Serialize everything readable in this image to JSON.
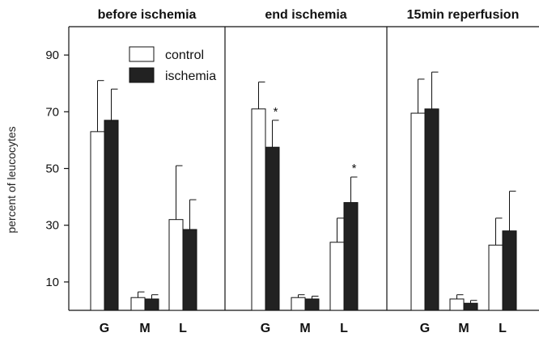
{
  "chart_data": {
    "type": "bar",
    "ylabel": "percent of leucocytes",
    "ylim": [
      0,
      100
    ],
    "yticks": [
      10,
      30,
      50,
      70,
      90
    ],
    "categories": [
      "G",
      "M",
      "L"
    ],
    "legend": {
      "placement": "top-left",
      "entries": [
        "control",
        "ischemia"
      ]
    },
    "colors": {
      "control": "#ffffff",
      "ischemia": "#222222",
      "axis": "#111111"
    },
    "panels": [
      {
        "title": "before ischemia",
        "series": [
          {
            "name": "control",
            "values": [
              63,
              4.5,
              32
            ],
            "errors": [
              18,
              2,
              19
            ]
          },
          {
            "name": "ischemia",
            "values": [
              67,
              4,
              28.5
            ],
            "errors": [
              11,
              1.5,
              10.5
            ]
          }
        ],
        "stars": []
      },
      {
        "title": "end ischemia",
        "series": [
          {
            "name": "control",
            "values": [
              71,
              4.5,
              24
            ],
            "errors": [
              9.5,
              1,
              8.5
            ]
          },
          {
            "name": "ischemia",
            "values": [
              57.5,
              4,
              38
            ],
            "errors": [
              9.5,
              1,
              9
            ]
          }
        ],
        "stars": [
          {
            "series": 1,
            "category": 0,
            "text": "*"
          },
          {
            "series": 1,
            "category": 2,
            "text": "*"
          }
        ]
      },
      {
        "title": "15min reperfusion",
        "series": [
          {
            "name": "control",
            "values": [
              69.5,
              4,
              23
            ],
            "errors": [
              12,
              1.5,
              9.5
            ]
          },
          {
            "name": "ischemia",
            "values": [
              71,
              2.5,
              28
            ],
            "errors": [
              13,
              1,
              14
            ]
          }
        ],
        "stars": []
      }
    ]
  }
}
